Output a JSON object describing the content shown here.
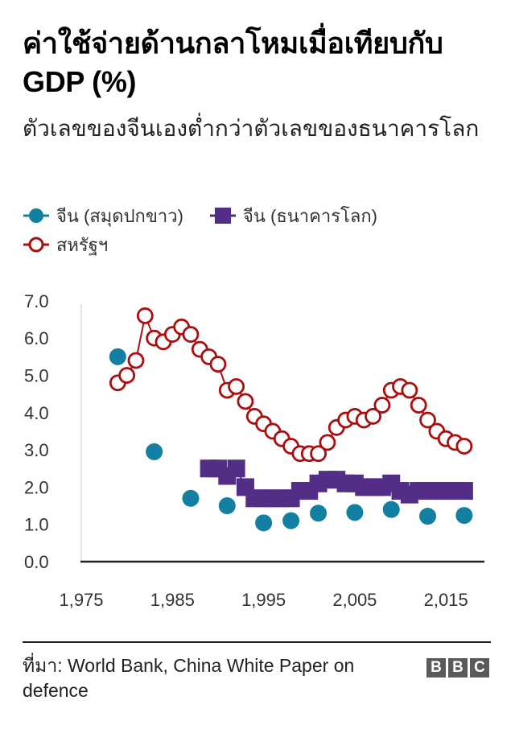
{
  "header": {
    "title": "ค่าใช้จ่ายด้านกลาโหมเมื่อเทียบกับ GDP (%)",
    "subtitle": "ตัวเลขของจีนเองต่ำกว่าตัวเลขของธนาคารโลก"
  },
  "legend": [
    {
      "label": "จีน (สมุดปกขาว)",
      "marker": "filled-circle",
      "color": "#1380A1"
    },
    {
      "label": "จีน (ธนาคารโลก)",
      "marker": "filled-square",
      "color": "#522E86"
    },
    {
      "label": "สหรัฐฯ",
      "marker": "hollow-circle",
      "color": "#AA0E0E"
    }
  ],
  "footer": {
    "source": "ที่มา: World Bank, China White Paper on defence",
    "logo": [
      "B",
      "B",
      "C"
    ]
  },
  "chart_data": {
    "type": "scatter",
    "title": "ค่าใช้จ่ายด้านกลาโหมเมื่อเทียบกับ GDP (%)",
    "subtitle": "ตัวเลขของจีนเองต่ำกว่าตัวเลขของธนาคารโลก",
    "xlabel": "",
    "ylabel": "",
    "xlim": [
      1975,
      2019
    ],
    "ylim": [
      0,
      7
    ],
    "x_ticks": [
      1975,
      1985,
      1995,
      2005,
      2015
    ],
    "x_tick_labels": [
      "1,975",
      "1,985",
      "1,995",
      "2,005",
      "2,015"
    ],
    "y_ticks": [
      0,
      1,
      2,
      3,
      4,
      5,
      6,
      7
    ],
    "y_tick_labels": [
      "0.0",
      "1.0",
      "2.0",
      "3.0",
      "4.0",
      "5.0",
      "6.0",
      "7.0"
    ],
    "grid": false,
    "legend_position": "top",
    "series": [
      {
        "name": "จีน (สมุดปกขาว)",
        "marker": "filled-circle",
        "color": "#1380A1",
        "connect": false,
        "x": [
          1979,
          1983,
          1987,
          1991,
          1995,
          1998,
          2001,
          2005,
          2009,
          2013,
          2017
        ],
        "values": [
          5.5,
          2.95,
          1.7,
          1.5,
          1.04,
          1.1,
          1.3,
          1.32,
          1.4,
          1.22,
          1.24
        ]
      },
      {
        "name": "จีน (ธนาคารโลก)",
        "marker": "filled-square",
        "color": "#522E86",
        "connect": true,
        "x": [
          1989,
          1990,
          1991,
          1992,
          1993,
          1994,
          1995,
          1996,
          1997,
          1998,
          1999,
          2000,
          2001,
          2002,
          2003,
          2004,
          2005,
          2006,
          2007,
          2008,
          2009,
          2010,
          2011,
          2012,
          2013,
          2014,
          2015,
          2016,
          2017
        ],
        "values": [
          2.5,
          2.5,
          2.3,
          2.5,
          2.0,
          1.7,
          1.7,
          1.7,
          1.7,
          1.7,
          1.9,
          1.9,
          2.1,
          2.2,
          2.2,
          2.1,
          2.1,
          2.0,
          2.0,
          2.0,
          2.1,
          1.9,
          1.8,
          1.9,
          1.9,
          1.9,
          1.9,
          1.9,
          1.9
        ]
      },
      {
        "name": "สหรัฐฯ",
        "marker": "hollow-circle",
        "color": "#AA0E0E",
        "connect": true,
        "x": [
          1979,
          1980,
          1981,
          1982,
          1983,
          1984,
          1985,
          1986,
          1987,
          1988,
          1989,
          1990,
          1991,
          1992,
          1993,
          1994,
          1995,
          1996,
          1997,
          1998,
          1999,
          2000,
          2001,
          2002,
          2003,
          2004,
          2005,
          2006,
          2007,
          2008,
          2009,
          2010,
          2011,
          2012,
          2013,
          2014,
          2015,
          2016,
          2017
        ],
        "values": [
          4.8,
          5.0,
          5.4,
          6.6,
          6.0,
          5.9,
          6.1,
          6.3,
          6.1,
          5.7,
          5.5,
          5.3,
          4.6,
          4.7,
          4.3,
          3.9,
          3.7,
          3.5,
          3.3,
          3.1,
          2.9,
          2.9,
          2.9,
          3.2,
          3.6,
          3.8,
          3.9,
          3.8,
          3.9,
          4.2,
          4.6,
          4.7,
          4.6,
          4.2,
          3.8,
          3.5,
          3.3,
          3.2,
          3.1
        ]
      }
    ]
  }
}
